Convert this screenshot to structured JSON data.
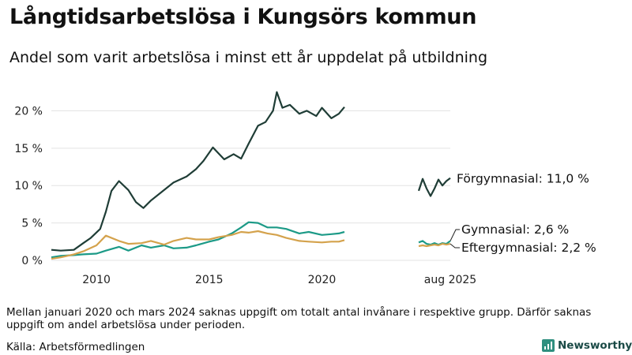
{
  "header": {
    "title": "Långtidsarbetslösa i Kungsörs kommun",
    "subtitle": "Andel som varit arbetslösa i minst ett år uppdelat på utbildning"
  },
  "footer": {
    "note": "Mellan januari 2020 och mars 2024 saknas uppgift om totalt antal invånare i respektive grupp. Därför saknas uppgift om andel arbetslösa under perioden.",
    "source": "Källa: Arbetsförmedlingen",
    "brand": "Newsworthy",
    "brand_icon": "newsworthy-logo-icon"
  },
  "chart_data": {
    "type": "line",
    "y_unit": "%",
    "ylim": [
      0,
      23
    ],
    "y_ticks": [
      0,
      5,
      10,
      15,
      20
    ],
    "y_tick_labels": [
      "0 %",
      "5 %",
      "10 %",
      "15 %",
      "20 %"
    ],
    "x_tick_labels": [
      {
        "x": "2010-01",
        "label": "2010"
      },
      {
        "x": "2015-01",
        "label": "2015"
      },
      {
        "x": "2020-01",
        "label": "2020"
      },
      {
        "x": "2025-08",
        "label": "aug 2025"
      }
    ],
    "grid": true,
    "series": [
      {
        "name": "Förgymnasial",
        "color": "#1f3d36",
        "end_label": "Förgymnasial: 11,0 %",
        "segments": [
          [
            [
              "2008-01",
              1.4
            ],
            [
              "2008-06",
              1.3
            ],
            [
              "2009-01",
              1.4
            ],
            [
              "2009-06",
              2.3
            ],
            [
              "2009-10",
              3.0
            ],
            [
              "2010-03",
              4.2
            ],
            [
              "2010-06",
              6.5
            ],
            [
              "2010-09",
              9.3
            ],
            [
              "2011-01",
              10.6
            ],
            [
              "2011-06",
              9.4
            ],
            [
              "2011-10",
              7.8
            ],
            [
              "2012-02",
              7.0
            ],
            [
              "2012-06",
              8.0
            ],
            [
              "2013-01",
              9.4
            ],
            [
              "2013-06",
              10.4
            ],
            [
              "2014-01",
              11.2
            ],
            [
              "2014-06",
              12.2
            ],
            [
              "2014-10",
              13.3
            ],
            [
              "2015-03",
              15.1
            ],
            [
              "2015-09",
              13.5
            ],
            [
              "2016-02",
              14.2
            ],
            [
              "2016-06",
              13.6
            ],
            [
              "2016-10",
              15.6
            ],
            [
              "2017-03",
              18.0
            ],
            [
              "2017-07",
              18.5
            ],
            [
              "2017-11",
              20.0
            ],
            [
              "2018-01",
              22.5
            ],
            [
              "2018-04",
              20.4
            ],
            [
              "2018-08",
              20.8
            ],
            [
              "2019-01",
              19.6
            ],
            [
              "2019-05",
              20.0
            ],
            [
              "2019-10",
              19.3
            ],
            [
              "2020-01",
              20.4
            ],
            [
              "2020-06",
              19.0
            ],
            [
              "2020-10",
              19.6
            ],
            [
              "2021-01",
              20.5
            ]
          ],
          [
            [
              "2024-04",
              9.3
            ],
            [
              "2024-06",
              10.9
            ],
            [
              "2024-08",
              9.6
            ],
            [
              "2024-10",
              8.6
            ],
            [
              "2024-12",
              9.6
            ],
            [
              "2025-02",
              10.8
            ],
            [
              "2025-04",
              10.0
            ],
            [
              "2025-06",
              10.6
            ],
            [
              "2025-08",
              11.0
            ]
          ]
        ]
      },
      {
        "name": "Gymnasial",
        "color": "#1c9a87",
        "end_label": "Gymnasial:  2,6 %",
        "segments": [
          [
            [
              "2008-01",
              0.4
            ],
            [
              "2008-06",
              0.6
            ],
            [
              "2009-01",
              0.7
            ],
            [
              "2009-06",
              0.8
            ],
            [
              "2010-01",
              0.9
            ],
            [
              "2010-06",
              1.3
            ],
            [
              "2011-01",
              1.8
            ],
            [
              "2011-06",
              1.3
            ],
            [
              "2012-01",
              2.0
            ],
            [
              "2012-06",
              1.7
            ],
            [
              "2013-01",
              2.0
            ],
            [
              "2013-06",
              1.6
            ],
            [
              "2014-01",
              1.7
            ],
            [
              "2014-06",
              2.0
            ],
            [
              "2015-01",
              2.5
            ],
            [
              "2015-06",
              2.8
            ],
            [
              "2016-01",
              3.6
            ],
            [
              "2016-06",
              4.4
            ],
            [
              "2016-10",
              5.1
            ],
            [
              "2017-03",
              5.0
            ],
            [
              "2017-08",
              4.4
            ],
            [
              "2018-01",
              4.4
            ],
            [
              "2018-06",
              4.2
            ],
            [
              "2019-01",
              3.6
            ],
            [
              "2019-06",
              3.8
            ],
            [
              "2020-01",
              3.4
            ],
            [
              "2020-06",
              3.5
            ],
            [
              "2020-10",
              3.6
            ],
            [
              "2021-01",
              3.8
            ]
          ],
          [
            [
              "2024-04",
              2.4
            ],
            [
              "2024-06",
              2.6
            ],
            [
              "2024-08",
              2.2
            ],
            [
              "2024-10",
              2.1
            ],
            [
              "2024-12",
              2.3
            ],
            [
              "2025-02",
              2.1
            ],
            [
              "2025-04",
              2.3
            ],
            [
              "2025-06",
              2.2
            ],
            [
              "2025-08",
              2.6
            ]
          ]
        ]
      },
      {
        "name": "Eftergymnasial",
        "color": "#d4a24c",
        "end_label": "Eftergymnasial:  2,2 %",
        "segments": [
          [
            [
              "2008-01",
              0.2
            ],
            [
              "2008-06",
              0.4
            ],
            [
              "2009-01",
              0.8
            ],
            [
              "2009-06",
              1.2
            ],
            [
              "2010-01",
              2.0
            ],
            [
              "2010-06",
              3.3
            ],
            [
              "2011-01",
              2.6
            ],
            [
              "2011-06",
              2.2
            ],
            [
              "2012-01",
              2.3
            ],
            [
              "2012-06",
              2.6
            ],
            [
              "2013-01",
              2.1
            ],
            [
              "2013-06",
              2.6
            ],
            [
              "2014-01",
              3.0
            ],
            [
              "2014-06",
              2.8
            ],
            [
              "2015-01",
              2.8
            ],
            [
              "2015-06",
              3.1
            ],
            [
              "2016-01",
              3.4
            ],
            [
              "2016-06",
              3.8
            ],
            [
              "2016-10",
              3.7
            ],
            [
              "2017-03",
              3.9
            ],
            [
              "2017-08",
              3.6
            ],
            [
              "2018-01",
              3.4
            ],
            [
              "2018-06",
              3.0
            ],
            [
              "2019-01",
              2.6
            ],
            [
              "2019-06",
              2.5
            ],
            [
              "2020-01",
              2.4
            ],
            [
              "2020-06",
              2.5
            ],
            [
              "2020-10",
              2.5
            ],
            [
              "2021-01",
              2.7
            ]
          ],
          [
            [
              "2024-04",
              1.9
            ],
            [
              "2024-06",
              2.0
            ],
            [
              "2024-08",
              1.9
            ],
            [
              "2024-10",
              2.0
            ],
            [
              "2024-12",
              2.1
            ],
            [
              "2025-02",
              2.0
            ],
            [
              "2025-04",
              2.2
            ],
            [
              "2025-06",
              2.1
            ],
            [
              "2025-08",
              2.2
            ]
          ]
        ]
      }
    ]
  }
}
